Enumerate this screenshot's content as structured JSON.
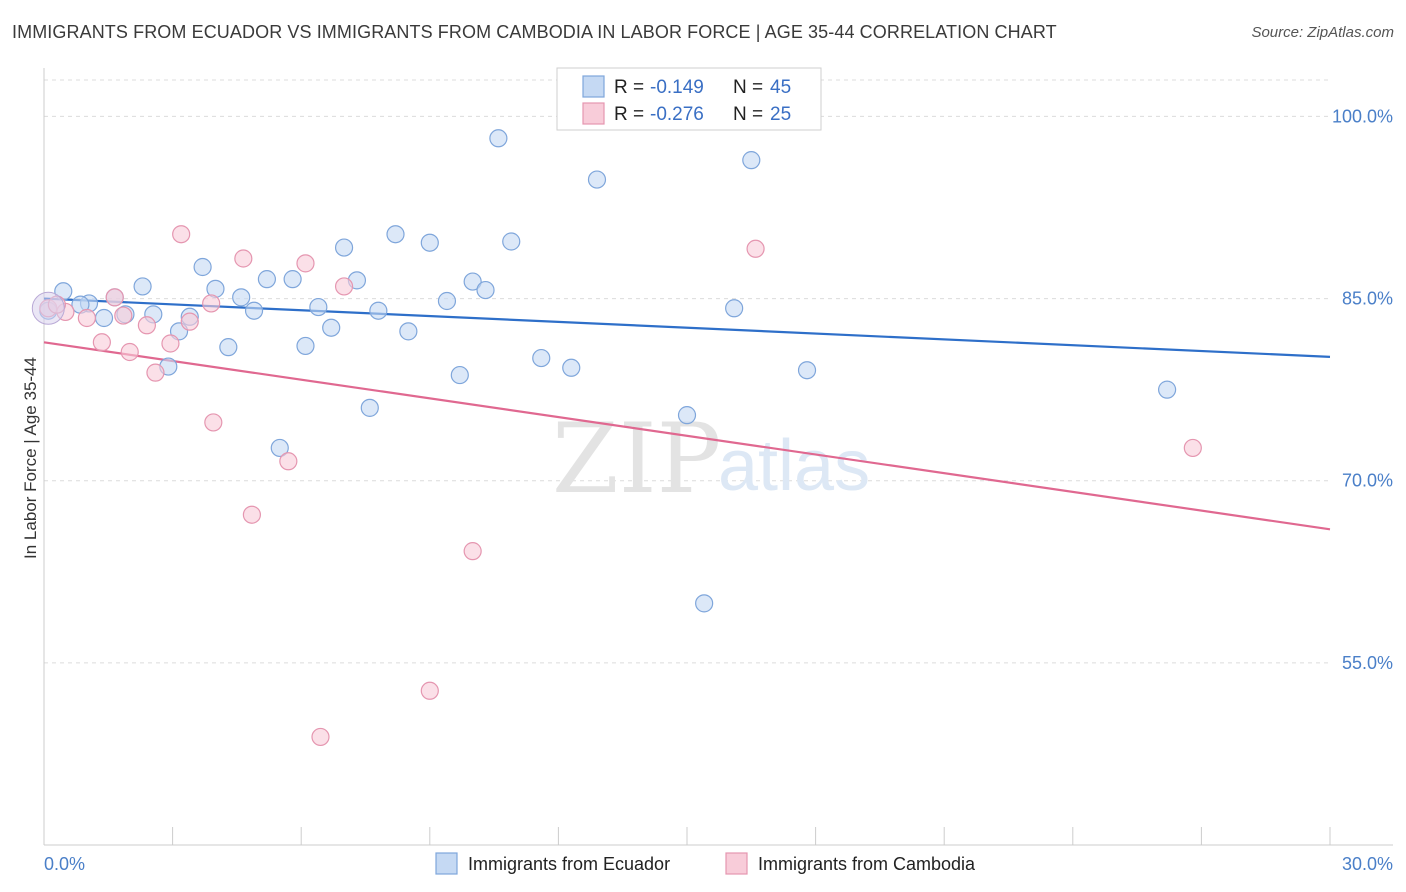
{
  "header": {
    "title": "IMMIGRANTS FROM ECUADOR VS IMMIGRANTS FROM CAMBODIA IN LABOR FORCE | AGE 35-44 CORRELATION CHART",
    "source": "Source: ZipAtlas.com"
  },
  "watermark": {
    "zip": "ZIP",
    "atlas": "atlas"
  },
  "legend": {
    "rows": [
      {
        "r_label": "R = ",
        "r_value": "-0.149",
        "n_label": "N = ",
        "n_value": "45"
      },
      {
        "r_label": "R = ",
        "r_value": "-0.276",
        "n_label": "N = ",
        "n_value": "25"
      }
    ]
  },
  "chart_data": {
    "type": "scatter",
    "title": "IMMIGRANTS FROM ECUADOR VS IMMIGRANTS FROM CAMBODIA IN LABOR FORCE | AGE 35-44 CORRELATION CHART",
    "xlabel": "",
    "ylabel": "In Labor Force | Age 35-44",
    "xlim": [
      0,
      30
    ],
    "ylim": [
      40,
      103
    ],
    "x_tick_labels": [
      "0.0%",
      "30.0%"
    ],
    "y_ticks": [
      55,
      70,
      85,
      100
    ],
    "y_tick_labels": [
      "55.0%",
      "70.0%",
      "85.0%",
      "100.0%"
    ],
    "grid": true,
    "legend_position": "top-center",
    "colors": {
      "ecuador_fill": "#c5d9f3",
      "ecuador_stroke": "#7fa6db",
      "ecuador_line": "#2e6fc9",
      "cambodia_fill": "#f8ccd9",
      "cambodia_stroke": "#e596b0",
      "cambodia_line": "#e06890"
    },
    "series": [
      {
        "name": "Immigrants from Ecuador",
        "trend": {
          "x": [
            0,
            30
          ],
          "y": [
            85.0,
            80.2
          ]
        },
        "points": [
          [
            0.1,
            84.0
          ],
          [
            0.45,
            85.6
          ],
          [
            1.05,
            84.6
          ],
          [
            1.4,
            83.4
          ],
          [
            1.9,
            83.7
          ],
          [
            2.3,
            86.0
          ],
          [
            2.55,
            83.7
          ],
          [
            2.9,
            79.4
          ],
          [
            3.15,
            82.3
          ],
          [
            3.4,
            83.5
          ],
          [
            3.7,
            87.6
          ],
          [
            4.0,
            85.8
          ],
          [
            4.3,
            81.0
          ],
          [
            4.6,
            85.1
          ],
          [
            4.9,
            84.0
          ],
          [
            5.2,
            86.6
          ],
          [
            5.5,
            72.7
          ],
          [
            5.8,
            86.6
          ],
          [
            6.1,
            81.1
          ],
          [
            6.4,
            84.3
          ],
          [
            6.7,
            82.6
          ],
          [
            7.0,
            89.2
          ],
          [
            7.3,
            86.5
          ],
          [
            7.6,
            76.0
          ],
          [
            7.8,
            84.0
          ],
          [
            8.2,
            90.3
          ],
          [
            8.5,
            82.3
          ],
          [
            9.0,
            89.6
          ],
          [
            9.4,
            84.8
          ],
          [
            9.7,
            78.7
          ],
          [
            10.0,
            86.4
          ],
          [
            10.3,
            85.7
          ],
          [
            10.6,
            98.2
          ],
          [
            10.9,
            89.7
          ],
          [
            11.6,
            80.1
          ],
          [
            12.3,
            79.3
          ],
          [
            12.9,
            94.8
          ],
          [
            15.0,
            75.4
          ],
          [
            15.4,
            59.9
          ],
          [
            16.1,
            84.2
          ],
          [
            16.5,
            96.4
          ],
          [
            17.8,
            79.1
          ],
          [
            26.2,
            77.5
          ],
          [
            0.85,
            84.5
          ],
          [
            1.65,
            85.1
          ]
        ]
      },
      {
        "name": "Immigrants from Cambodia",
        "trend": {
          "x": [
            0,
            30
          ],
          "y": [
            81.4,
            66.0
          ]
        },
        "points": [
          [
            0.1,
            84.2
          ],
          [
            0.5,
            83.9
          ],
          [
            1.0,
            83.4
          ],
          [
            1.35,
            81.4
          ],
          [
            1.65,
            85.1
          ],
          [
            1.85,
            83.6
          ],
          [
            2.0,
            80.6
          ],
          [
            2.4,
            82.8
          ],
          [
            2.6,
            78.9
          ],
          [
            2.95,
            81.3
          ],
          [
            3.2,
            90.3
          ],
          [
            3.4,
            83.1
          ],
          [
            3.9,
            84.6
          ],
          [
            3.95,
            74.8
          ],
          [
            4.65,
            88.3
          ],
          [
            4.85,
            67.2
          ],
          [
            5.7,
            71.6
          ],
          [
            6.1,
            87.9
          ],
          [
            6.45,
            48.9
          ],
          [
            7.0,
            86.0
          ],
          [
            9.0,
            52.7
          ],
          [
            10.0,
            64.2
          ],
          [
            16.6,
            89.1
          ],
          [
            26.8,
            72.7
          ],
          [
            0.3,
            84.5
          ]
        ]
      }
    ]
  },
  "bottom_legend": {
    "items": [
      {
        "label": "Immigrants from Ecuador"
      },
      {
        "label": "Immigrants from Cambodia"
      }
    ]
  }
}
